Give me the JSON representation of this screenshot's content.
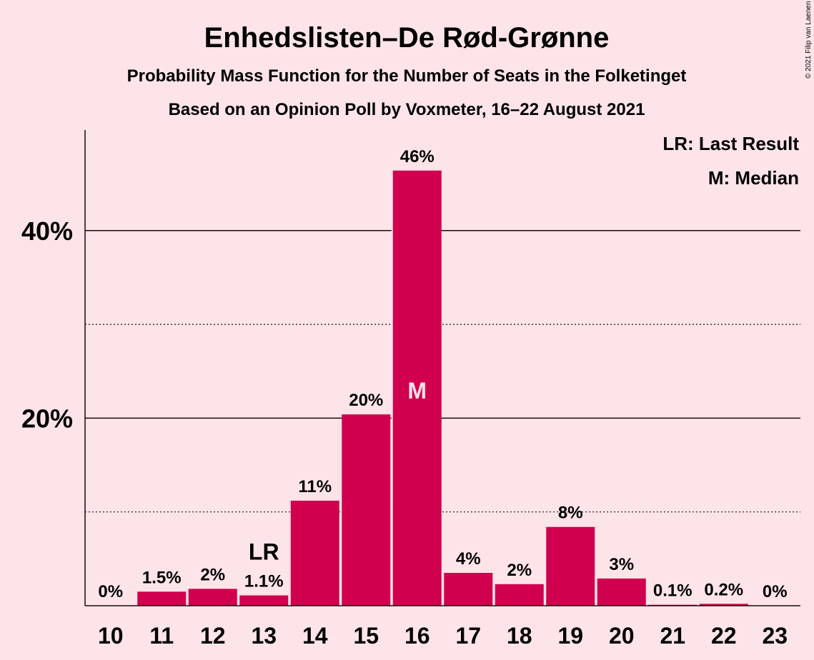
{
  "header": {
    "title": "Enhedslisten–De Rød-Grønne",
    "subtitle1": "Probability Mass Function for the Number of Seats in the Folketinget",
    "subtitle2": "Based on an Opinion Poll by Voxmeter, 16–22 August 2021",
    "copyright": "© 2021 Filip van Laenen"
  },
  "legend": {
    "lr": "LR: Last Result",
    "m": "M: Median"
  },
  "colors": {
    "bar": "#d1004f",
    "background": "#fde4e8",
    "text": "#1a0a0a",
    "median_marker": "#fde4e8"
  },
  "chart_data": {
    "type": "bar",
    "title": "Enhedslisten–De Rød-Grønne",
    "xlabel": "",
    "ylabel": "",
    "ylim": [
      0,
      50
    ],
    "ytick_values": [
      20,
      40
    ],
    "ytick_labels": [
      "20%",
      "40%"
    ],
    "dotted_gridlines": [
      10,
      30
    ],
    "categories": [
      "10",
      "11",
      "12",
      "13",
      "14",
      "15",
      "16",
      "17",
      "18",
      "19",
      "20",
      "21",
      "22",
      "23"
    ],
    "values": [
      0,
      1.5,
      1.8,
      1.1,
      11.2,
      20.4,
      46.4,
      3.5,
      2.3,
      8.4,
      2.9,
      0.1,
      0.2,
      0
    ],
    "labels": [
      "0%",
      "1.5%",
      "2%",
      "1.1%",
      "11%",
      "20%",
      "46%",
      "4%",
      "2%",
      "8%",
      "3%",
      "0.1%",
      "0.2%",
      "0%"
    ],
    "last_result": {
      "category": "13",
      "label": "LR"
    },
    "median": {
      "category": "16",
      "label": "M"
    },
    "legend_position": "top-right"
  }
}
